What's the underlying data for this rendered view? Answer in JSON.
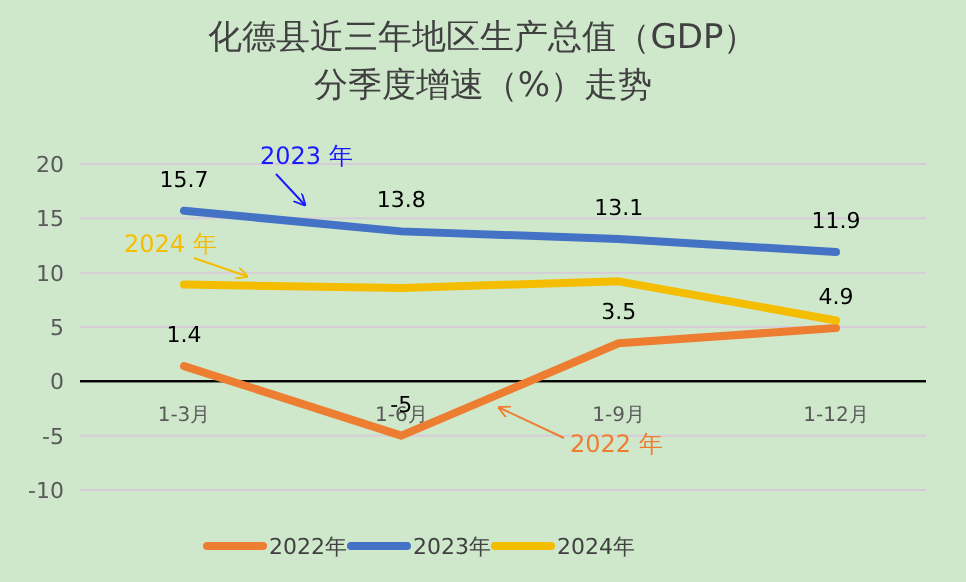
{
  "chart_data": {
    "type": "line",
    "title": "化德县近三年地区生产总值（GDP）",
    "subtitle": "分季度增速（%）走势",
    "categories": [
      "1-3月",
      "1-6月",
      "1-9月",
      "1-12月"
    ],
    "series": [
      {
        "name": "2022年",
        "color": "#ed7d31",
        "values": [
          1.4,
          -5,
          3.5,
          4.9
        ],
        "value_labels": [
          "1.4",
          "-5",
          "3.5",
          "4.9"
        ]
      },
      {
        "name": "2023年",
        "color": "#4472c4",
        "values": [
          15.7,
          13.8,
          13.1,
          11.9
        ],
        "value_labels": [
          "15.7",
          "13.8",
          "13.1",
          "11.9"
        ]
      },
      {
        "name": "2024年",
        "color": "#f5bd00",
        "values": [
          8.9,
          8.6,
          9.2,
          5.6
        ]
      }
    ],
    "ylim": [
      -10,
      20
    ],
    "yticks": [
      -10,
      -5,
      0,
      5,
      10,
      15,
      20
    ],
    "grid": "y",
    "legend": "bottom",
    "line_style": "solid",
    "annotations": [
      "2023 年",
      "2024 年",
      "2022 年"
    ]
  }
}
